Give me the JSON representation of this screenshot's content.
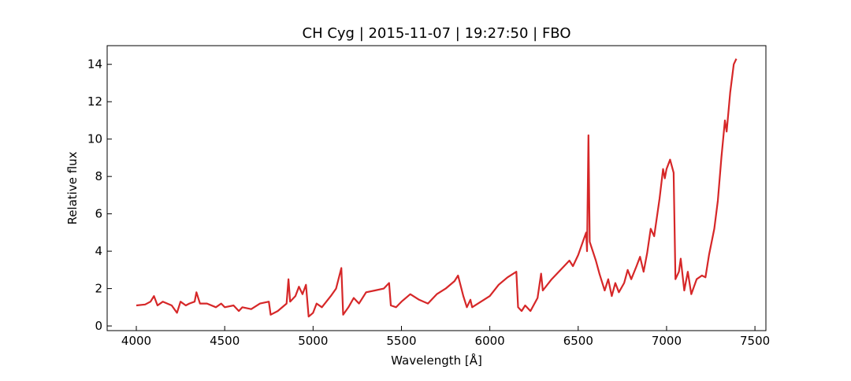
{
  "chart_data": {
    "type": "line",
    "title": "CH Cyg | 2015-11-07 | 19:27:50 | FBO",
    "x_label": "Wavelength [Å]",
    "y_label": "Relative flux",
    "color": "#d62728",
    "x": [
      4000,
      4050,
      4080,
      4100,
      4120,
      4150,
      4200,
      4230,
      4250,
      4280,
      4300,
      4330,
      4340,
      4360,
      4400,
      4450,
      4480,
      4500,
      4550,
      4580,
      4600,
      4650,
      4700,
      4750,
      4760,
      4800,
      4850,
      4861,
      4870,
      4900,
      4920,
      4940,
      4960,
      4975,
      5000,
      5020,
      5050,
      5100,
      5130,
      5160,
      5170,
      5200,
      5230,
      5260,
      5300,
      5350,
      5400,
      5430,
      5440,
      5470,
      5500,
      5550,
      5600,
      5650,
      5700,
      5750,
      5800,
      5820,
      5850,
      5870,
      5890,
      5900,
      5950,
      6000,
      6050,
      6100,
      6150,
      6160,
      6180,
      6200,
      6230,
      6270,
      6290,
      6300,
      6350,
      6400,
      6450,
      6470,
      6500,
      6530,
      6545,
      6550,
      6558,
      6565,
      6600,
      6620,
      6650,
      6670,
      6690,
      6710,
      6730,
      6760,
      6780,
      6800,
      6830,
      6850,
      6870,
      6890,
      6910,
      6930,
      6960,
      6980,
      6990,
      7000,
      7020,
      7040,
      7050,
      7070,
      7080,
      7100,
      7120,
      7140,
      7170,
      7200,
      7220,
      7240,
      7270,
      7290,
      7310,
      7330,
      7340,
      7360,
      7380,
      7395
    ],
    "values": [
      1.1,
      1.15,
      1.3,
      1.6,
      1.1,
      1.3,
      1.1,
      0.7,
      1.3,
      1.1,
      1.2,
      1.3,
      1.8,
      1.2,
      1.2,
      1.0,
      1.2,
      1.0,
      1.1,
      0.8,
      1.0,
      0.9,
      1.2,
      1.3,
      0.6,
      0.8,
      1.2,
      2.5,
      1.3,
      1.6,
      2.1,
      1.7,
      2.2,
      0.5,
      0.7,
      1.2,
      1.0,
      1.6,
      2.0,
      3.1,
      0.6,
      1.0,
      1.5,
      1.2,
      1.8,
      1.9,
      2.0,
      2.3,
      1.1,
      1.0,
      1.3,
      1.7,
      1.4,
      1.2,
      1.7,
      2.0,
      2.4,
      2.7,
      1.6,
      1.0,
      1.4,
      1.0,
      1.3,
      1.6,
      2.2,
      2.6,
      2.9,
      1.0,
      0.8,
      1.1,
      0.8,
      1.5,
      2.8,
      1.9,
      2.5,
      3.0,
      3.5,
      3.2,
      3.8,
      4.6,
      5.0,
      4.0,
      10.2,
      4.5,
      3.5,
      2.8,
      1.9,
      2.5,
      1.6,
      2.3,
      1.8,
      2.3,
      3.0,
      2.5,
      3.2,
      3.7,
      2.9,
      3.9,
      5.2,
      4.8,
      6.8,
      8.4,
      7.9,
      8.4,
      8.9,
      8.2,
      2.5,
      2.9,
      3.6,
      1.9,
      2.9,
      1.7,
      2.5,
      2.7,
      2.6,
      3.8,
      5.2,
      6.7,
      9.0,
      11.0,
      10.4,
      12.5,
      14.0,
      14.3
    ],
    "xlim": [
      3835,
      7562
    ],
    "ylim": [
      -0.25,
      15.0
    ],
    "xticks": [
      4000,
      4500,
      5000,
      5500,
      6000,
      6500,
      7000,
      7500
    ],
    "yticks": [
      0,
      2,
      4,
      6,
      8,
      10,
      12,
      14
    ]
  }
}
